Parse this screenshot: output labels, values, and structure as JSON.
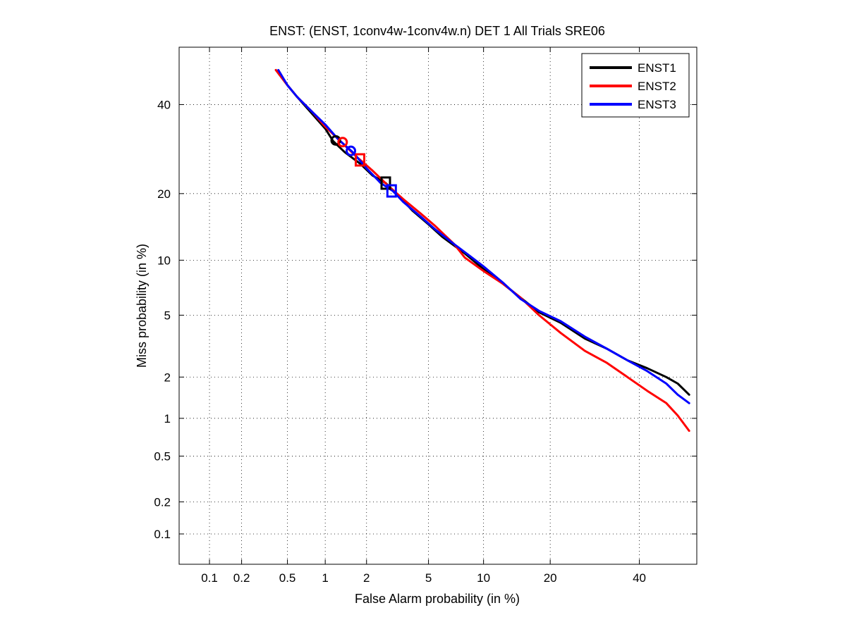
{
  "chart_data": {
    "type": "line",
    "title": "ENST: (ENST, 1conv4w-1conv4w.n) DET 1 All Trials SRE06",
    "xlabel": "False Alarm probability (in %)",
    "ylabel": "Miss probability (in %)",
    "scale": "probit (normal deviate)",
    "xlim": [
      0.05,
      55
    ],
    "ylim": [
      0.05,
      55
    ],
    "xticks": [
      0.1,
      0.2,
      0.5,
      1,
      2,
      5,
      10,
      20,
      40
    ],
    "xtick_labels": [
      "0.1",
      "0.2",
      "0.5",
      "1",
      "2",
      "5",
      "10",
      "20",
      "40"
    ],
    "yticks": [
      0.1,
      0.2,
      0.5,
      1,
      2,
      5,
      10,
      20,
      40
    ],
    "ytick_labels": [
      "0.1",
      "0.2",
      "0.5",
      "1",
      "2",
      "5",
      "10",
      "20",
      "40"
    ],
    "grid": true,
    "legend_position": "top-right",
    "series": [
      {
        "name": "ENST1",
        "color": "#000000",
        "x": [
          0.4,
          0.5,
          0.6,
          0.8,
          1.0,
          1.15,
          1.4,
          1.8,
          2.2,
          2.7,
          3.3,
          4.0,
          5.0,
          6.0,
          8.0,
          10.0,
          12.5,
          15.0,
          18.0,
          22.0,
          27.0,
          32.0,
          37.0,
          42.0,
          47.0,
          50.0,
          53.0
        ],
        "y": [
          49.0,
          45.0,
          42.0,
          37.5,
          34.0,
          31.0,
          28.5,
          26.0,
          23.5,
          22.0,
          19.5,
          17.0,
          14.8,
          13.0,
          10.8,
          9.0,
          7.5,
          6.3,
          5.2,
          4.5,
          3.6,
          3.1,
          2.6,
          2.3,
          2.0,
          1.8,
          1.5
        ]
      },
      {
        "name": "ENST2",
        "color": "#ff0000",
        "x": [
          0.4,
          0.5,
          0.6,
          0.8,
          1.0,
          1.3,
          1.7,
          2.2,
          2.8,
          3.5,
          4.5,
          5.5,
          7.0,
          8.0,
          10.0,
          12.5,
          15.0,
          18.0,
          22.0,
          27.0,
          32.0,
          37.0,
          42.0,
          47.0,
          50.0,
          53.0
        ],
        "y": [
          49.0,
          45.0,
          42.0,
          38.0,
          34.5,
          31.0,
          27.5,
          24.5,
          21.5,
          19.0,
          16.5,
          14.5,
          12.0,
          10.3,
          8.8,
          7.5,
          6.3,
          5.0,
          3.9,
          3.0,
          2.5,
          2.0,
          1.6,
          1.3,
          1.05,
          0.8
        ]
      },
      {
        "name": "ENST3",
        "color": "#0000ff",
        "x": [
          0.42,
          0.5,
          0.6,
          0.8,
          1.0,
          1.25,
          1.6,
          2.0,
          2.5,
          3.0,
          3.5,
          4.5,
          5.5,
          7.0,
          8.5,
          10.0,
          12.5,
          15.0,
          18.0,
          22.0,
          27.0,
          32.0,
          37.0,
          42.0,
          47.0,
          50.0,
          53.0
        ],
        "y": [
          49.0,
          45.0,
          42.0,
          38.0,
          35.0,
          31.5,
          28.5,
          25.0,
          22.0,
          20.5,
          18.5,
          16.0,
          14.0,
          12.0,
          10.5,
          9.3,
          7.6,
          6.2,
          5.3,
          4.6,
          3.7,
          3.1,
          2.6,
          2.2,
          1.8,
          1.5,
          1.3
        ]
      }
    ],
    "markers": [
      {
        "series": "ENST1",
        "shape": "circle",
        "x": 1.2,
        "y": 31.2
      },
      {
        "series": "ENST1",
        "shape": "square",
        "x": 2.7,
        "y": 22.0
      },
      {
        "series": "ENST2",
        "shape": "circle",
        "x": 1.35,
        "y": 30.8
      },
      {
        "series": "ENST2",
        "shape": "square",
        "x": 1.8,
        "y": 26.8
      },
      {
        "series": "ENST3",
        "shape": "circle",
        "x": 1.55,
        "y": 28.8
      },
      {
        "series": "ENST3",
        "shape": "square",
        "x": 2.95,
        "y": 20.5
      }
    ]
  }
}
